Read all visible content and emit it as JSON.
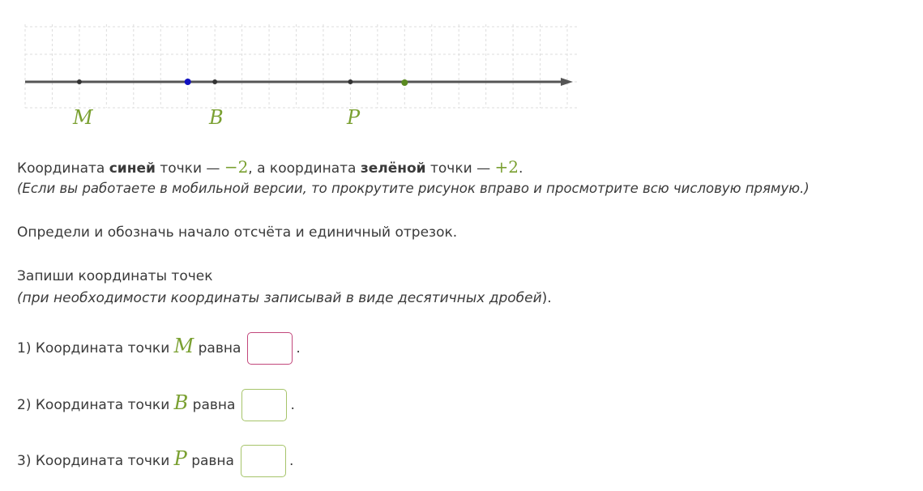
{
  "figure": {
    "axis": "number line",
    "points": [
      {
        "label": "M",
        "color": "#333333"
      },
      {
        "label": "",
        "color": "#1010c0",
        "value": -2
      },
      {
        "label": "B",
        "color": "#333333"
      },
      {
        "label": "P",
        "color": "#333333"
      },
      {
        "label": "",
        "color": "#5a8a20",
        "value": 2
      }
    ],
    "label_color": "#7aa031"
  },
  "text": {
    "line1_a": "Координата ",
    "line1_b": "синей",
    "line1_c": " точки — ",
    "line1_d": "−2",
    "line1_e": ", а координата ",
    "line1_f": "зелёной",
    "line1_g": " точки — ",
    "line1_h": "+2",
    "line1_i": ".",
    "line2": "(Если вы работаете в мобильной версии, то прокрутите рисунок вправо и просмотрите всю числовую прямую.)",
    "line3": "Определи и обозначь начало отсчёта и единичный отрезок.",
    "line4": "Запиши координаты точек",
    "line5_a": "(при необходимости координаты записывай в виде десятичных дробей",
    "line5_b": ")."
  },
  "questions": [
    {
      "prefix": "1) Координата точки ",
      "point": "M",
      "suffix": " равна",
      "value": "",
      "end": "."
    },
    {
      "prefix": "2) Координата точки ",
      "point": "B",
      "suffix": " равна",
      "value": "",
      "end": "."
    },
    {
      "prefix": "3) Координата точки ",
      "point": "P",
      "suffix": " равна",
      "value": "",
      "end": "."
    }
  ]
}
